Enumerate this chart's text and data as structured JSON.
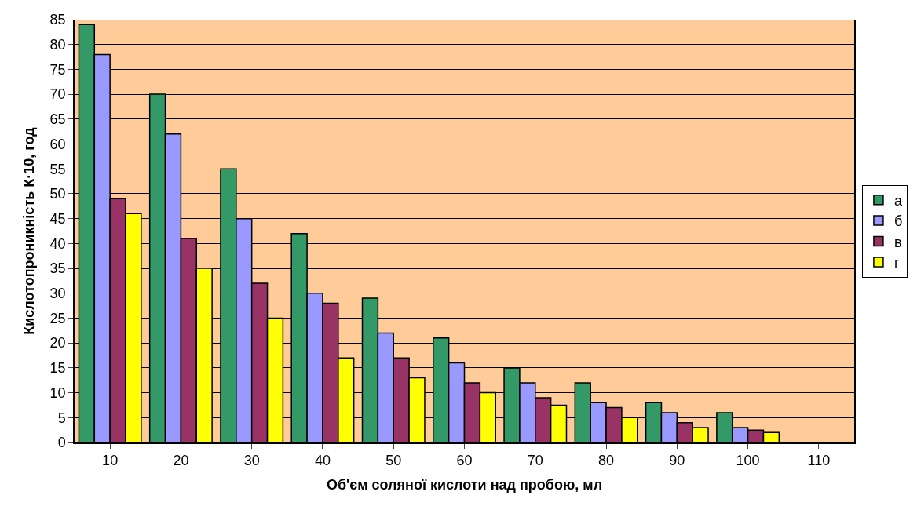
{
  "chart_data": {
    "type": "bar",
    "xlabel": "Об'єм соляної кислоти над пробою, мл",
    "ylabel": "Кислотопроникність К·10, год",
    "categories": [
      "10",
      "20",
      "30",
      "40",
      "50",
      "60",
      "70",
      "80",
      "90",
      "100",
      "110"
    ],
    "series": [
      {
        "name": "а",
        "color": "#339966",
        "values": [
          84,
          70,
          55,
          42,
          29,
          21,
          15,
          12,
          8,
          6,
          null
        ]
      },
      {
        "name": "б",
        "color": "#9999ff",
        "values": [
          78,
          62,
          45,
          30,
          22,
          16,
          12,
          8,
          6,
          3,
          null
        ]
      },
      {
        "name": "в",
        "color": "#993366",
        "values": [
          49,
          41,
          32,
          28,
          17,
          12,
          9,
          7,
          4,
          2.5,
          null
        ]
      },
      {
        "name": "г",
        "color": "#ffff00",
        "values": [
          46,
          35,
          25,
          17,
          13,
          10,
          7.5,
          5,
          3,
          2,
          null
        ]
      }
    ],
    "ylim": [
      0,
      85
    ],
    "yticks": [
      0,
      5,
      10,
      15,
      20,
      25,
      30,
      35,
      40,
      45,
      50,
      55,
      60,
      65,
      70,
      75,
      80,
      85
    ],
    "grid": "y",
    "legend": "right"
  }
}
